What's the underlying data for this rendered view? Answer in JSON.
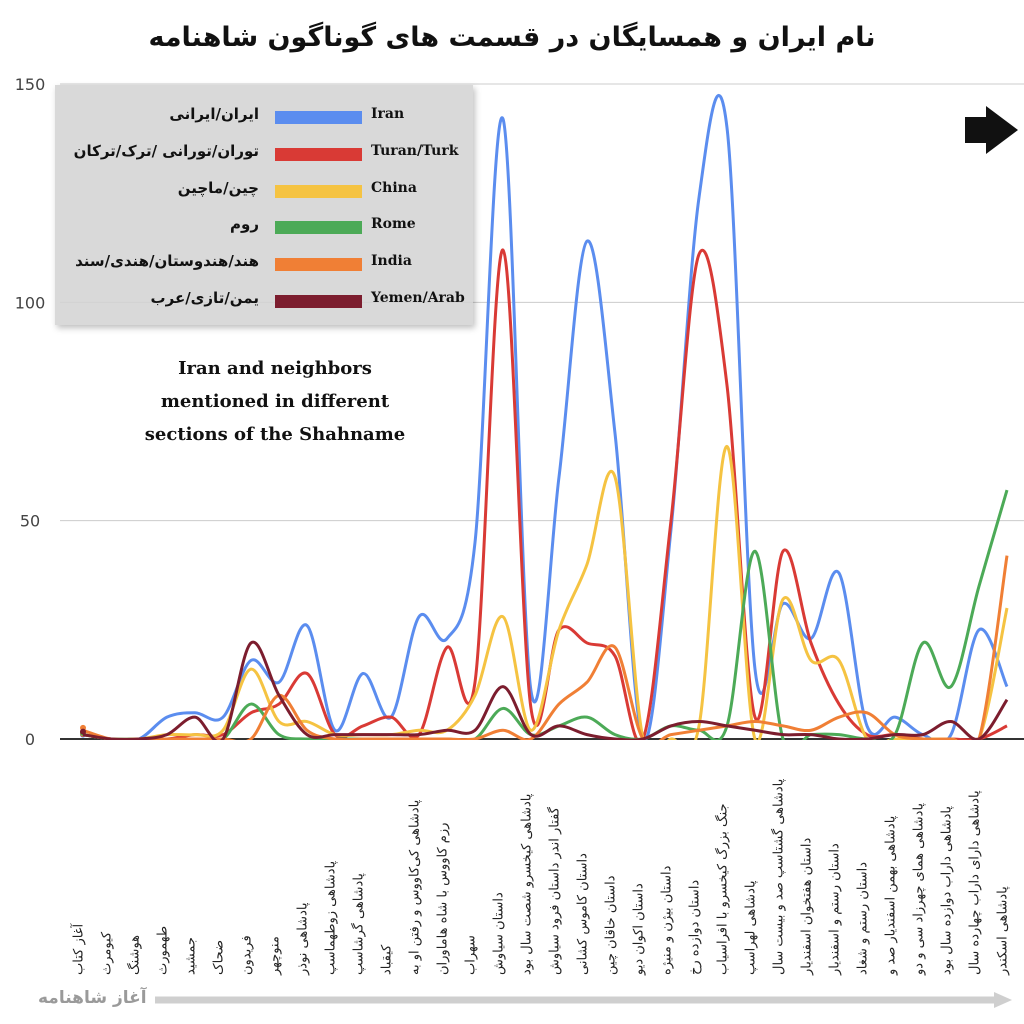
{
  "title": "نام ایران و همسایگان در قسمت های گوناگون شاهنامه",
  "annotation": [
    "Iran and neighbors",
    "mentioned in different",
    "sections of the Shahname"
  ],
  "bottom_arrow_label": "آغاز شاهنامه",
  "colors": {
    "grid": "#cccccc",
    "axis": "#333333"
  },
  "chart_data": {
    "type": "line",
    "smooth": true,
    "title": "نام ایران و همسایگان در قسمت های گوناگون شاهنامه",
    "xlabel": "آغاز شاهنامه",
    "ylabel": "",
    "ylim": [
      0,
      150
    ],
    "yticks": [
      "0",
      "50",
      "100",
      "150"
    ],
    "grid": true,
    "legend_position": "top-left",
    "categories": [
      "آغاز کتاب",
      "کیومرث",
      "هوشنگ",
      "طهمورث",
      "جمشید",
      "ضحاک",
      "فریدون",
      "منوچهر",
      "پادشاهی نوذر",
      "پادشاهی زوطهماسپ",
      "پادشاهی گرشاسپ",
      "کیقباد",
      "پادشاهی کی‌کاووس و رفتن او به",
      "رزم کاووس با شاه هاماوران",
      "سهراب",
      "داستان سیاوش",
      "پادشاهی کیخسرو شصت سال بود",
      "گفتار اندر داستان فرود سیاوش",
      "داستان کاموس کشانی",
      "داستان خاقان چین",
      "داستان اکوان دیو",
      "داستان بیژن و منیژه",
      "داستان دوازده رخ",
      "جنگ بزرگ کیخسرو با افراسیاب",
      "پادشاهی لهراسپ",
      "پادشاهی گشتاسپ صد و بیست سال",
      "داستان هفتخوان اسفندیار",
      "داستان رستم و اسفندیار",
      "داستان رستم و شغاد",
      "پادشاهی بهمن اسفندیار صد و",
      "پادشاهی همای چهرزاد سی و دو",
      "پادشاهی داراب دوازده سال بود",
      "پادشاهی دارای داراب چهارده سال",
      "پادشاهی اسکندر"
    ],
    "series": [
      {
        "name": "Iran",
        "label_fa": "ایران/ایرانی",
        "color": "#5b8def",
        "values": [
          1,
          0,
          0,
          5,
          6,
          5,
          18,
          13,
          26,
          2,
          15,
          5,
          28,
          23,
          45,
          142,
          11,
          60,
          114,
          70,
          0,
          48,
          124,
          140,
          16,
          31,
          23,
          38,
          3,
          5,
          1,
          1,
          25,
          12
        ]
      },
      {
        "name": "Turan/Turk",
        "label_fa": "توران/تورانی /ترک/ترکان",
        "color": "#d93a35",
        "values": [
          1,
          0,
          0,
          0,
          1,
          1,
          6,
          8,
          15,
          1,
          3,
          5,
          1,
          21,
          13,
          112,
          7,
          25,
          22,
          19,
          0,
          50,
          111,
          81,
          5,
          43,
          22,
          8,
          1,
          1,
          0,
          0,
          0,
          3
        ]
      },
      {
        "name": "China",
        "label_fa": "چین/ماچین",
        "color": "#f5c342",
        "values": [
          1,
          0,
          0,
          1,
          1,
          2,
          16,
          4,
          4,
          1,
          1,
          1,
          2,
          2,
          10,
          28,
          2,
          25,
          40,
          60,
          0,
          0,
          3,
          67,
          0,
          32,
          18,
          18,
          0,
          0,
          0,
          0,
          0,
          30
        ]
      },
      {
        "name": "Rome",
        "label_fa": "روم",
        "color": "#4caa57",
        "values": [
          1,
          0,
          0,
          0,
          0,
          0,
          8,
          1,
          0,
          0,
          0,
          0,
          0,
          0,
          0,
          7,
          1,
          3,
          5,
          1,
          0,
          3,
          2,
          3,
          43,
          0,
          1,
          1,
          0,
          1,
          22,
          12,
          35,
          57
        ]
      },
      {
        "name": "India",
        "label_fa": "هند/هندوستان/هندی/سند",
        "color": "#f07f35",
        "values": [
          2,
          0,
          0,
          0,
          0,
          0,
          0,
          10,
          2,
          0,
          0,
          0,
          0,
          0,
          0,
          2,
          0,
          8,
          13,
          21,
          0,
          1,
          2,
          3,
          4,
          3,
          2,
          5,
          6,
          1,
          0,
          0,
          0,
          42
        ]
      },
      {
        "name": "Yemen/Arab",
        "label_fa": "یمن/تازی/عرب",
        "color": "#7c1d2e",
        "values": [
          1,
          0,
          0,
          1,
          5,
          0,
          22,
          10,
          1,
          1,
          1,
          1,
          1,
          2,
          2,
          12,
          1,
          3,
          1,
          0,
          0,
          3,
          4,
          3,
          2,
          1,
          1,
          0,
          0,
          1,
          1,
          4,
          0,
          9
        ]
      }
    ]
  }
}
